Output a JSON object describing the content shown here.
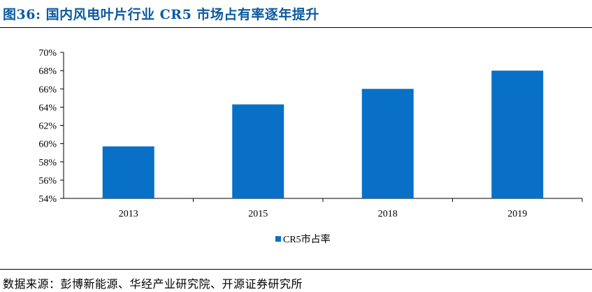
{
  "figure": {
    "title": "图36: 国内风电叶片行业 CR5 市场占有率逐年提升",
    "source": "数据来源：彭博新能源、华经产业研究院、开源证券研究所"
  },
  "colors": {
    "bar": "#0870c6",
    "title": "#0a5aa0",
    "axis": "#000000"
  },
  "chart_data": {
    "type": "bar",
    "categories": [
      "2013",
      "2015",
      "2018",
      "2019"
    ],
    "series": [
      {
        "name": "CR5市占率",
        "values": [
          59.7,
          64.3,
          66.0,
          68.0
        ]
      }
    ],
    "ylim": [
      54,
      70
    ],
    "yticks": [
      "54%",
      "56%",
      "58%",
      "60%",
      "62%",
      "64%",
      "66%",
      "68%",
      "70%"
    ],
    "grid": false,
    "legend_position": "bottom-center"
  }
}
